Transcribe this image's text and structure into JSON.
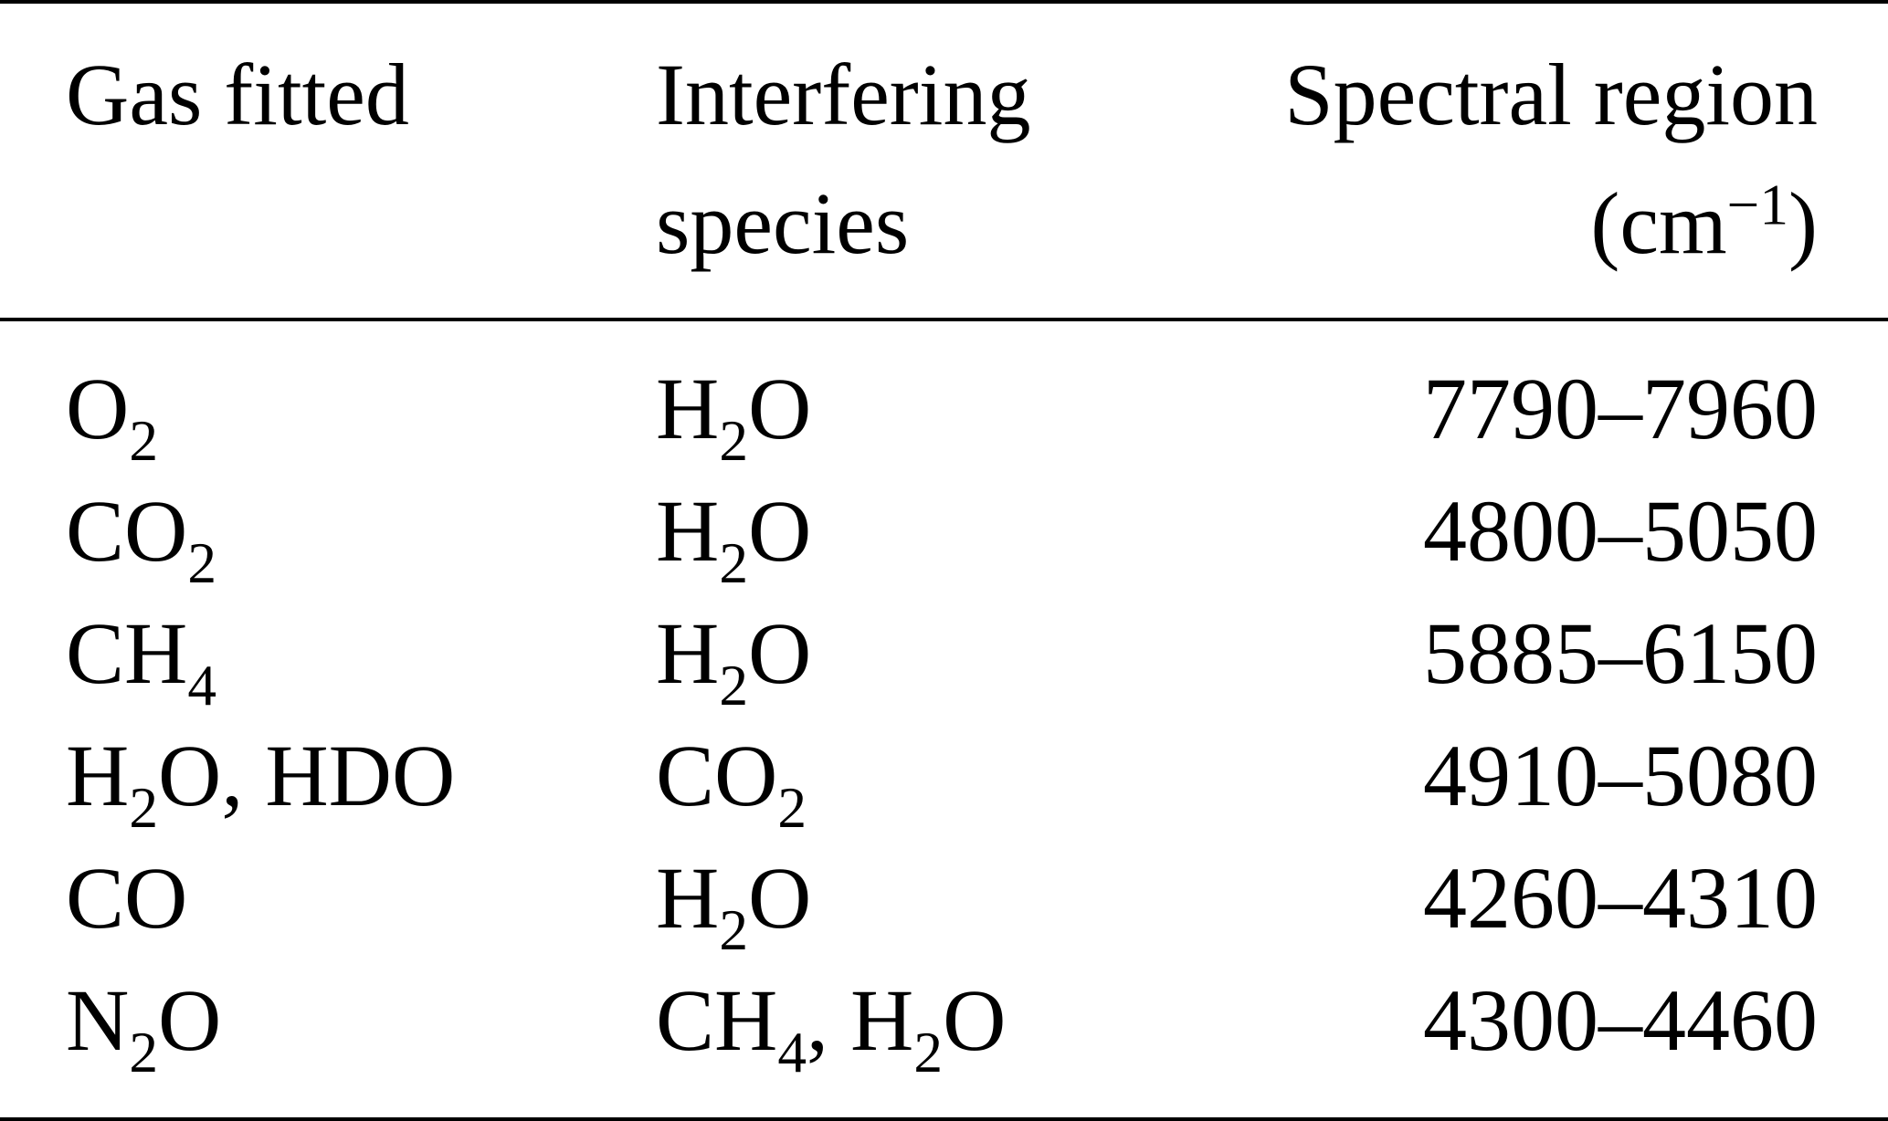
{
  "table": {
    "headers": {
      "gas_fitted": "Gas fitted",
      "interfering_line1": "Interfering",
      "interfering_line2": "species",
      "spectral_line1": "Spectral region",
      "spectral_unit_prefix": "(cm",
      "spectral_unit_exp": "−1",
      "spectral_unit_suffix": ")"
    },
    "rows": [
      {
        "gas": {
          "a": "O",
          "a_sub": "2"
        },
        "interfering": {
          "a": "H",
          "a_sub": "2",
          "b": "O"
        },
        "region": "7790–7960"
      },
      {
        "gas": {
          "a": "CO",
          "a_sub": "2"
        },
        "interfering": {
          "a": "H",
          "a_sub": "2",
          "b": "O"
        },
        "region": "4800–5050"
      },
      {
        "gas": {
          "a": "CH",
          "a_sub": "4"
        },
        "interfering": {
          "a": "H",
          "a_sub": "2",
          "b": "O"
        },
        "region": "5885–6150"
      },
      {
        "gas": {
          "a": "H",
          "a_sub": "2",
          "b": "O, HDO"
        },
        "interfering": {
          "a": "CO",
          "a_sub": "2"
        },
        "region": "4910–5080"
      },
      {
        "gas": {
          "a": "CO"
        },
        "interfering": {
          "a": "H",
          "a_sub": "2",
          "b": "O"
        },
        "region": "4260–4310"
      },
      {
        "gas": {
          "a": "N",
          "a_sub": "2",
          "b": "O"
        },
        "interfering": {
          "a": "CH",
          "a_sub": "4",
          "b": ", H",
          "b_sub": "2",
          "c": "O"
        },
        "region": "4300–4460"
      }
    ]
  }
}
